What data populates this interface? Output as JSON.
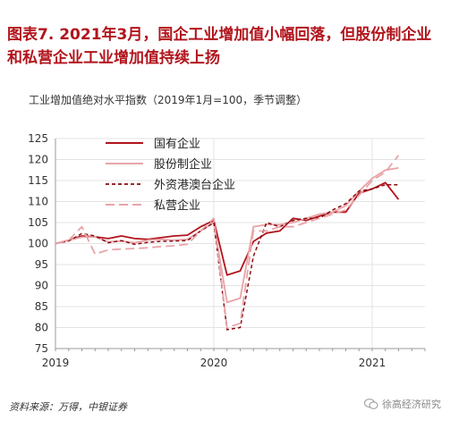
{
  "title": "图表7. 2021年3月，国企工业增加值小幅回落，但股份制企业和私营企业工业增加值持续上扬",
  "subtitle": "工业增加值绝对水平指数（2019年1月=100，季节调整）",
  "source": "资料来源：万得，中银证券",
  "watermark": "徐高经济研究",
  "chart_data": {
    "type": "line",
    "xlabel": "",
    "ylabel": "",
    "ylim": [
      75,
      125
    ],
    "yticks": [
      75,
      80,
      85,
      90,
      95,
      100,
      105,
      110,
      115,
      120,
      125
    ],
    "xlim": [
      "2019-01",
      "2021-05"
    ],
    "xtick_labels": [
      "2019",
      "2020",
      "2021"
    ],
    "grid": true,
    "legend": "top-left",
    "x": [
      "2019-01",
      "2019-02",
      "2019-03",
      "2019-04",
      "2019-05",
      "2019-06",
      "2019-07",
      "2019-08",
      "2019-09",
      "2019-10",
      "2019-11",
      "2019-12",
      "2020-01",
      "2020-02",
      "2020-03",
      "2020-04",
      "2020-05",
      "2020-06",
      "2020-07",
      "2020-08",
      "2020-09",
      "2020-10",
      "2020-11",
      "2020-12",
      "2021-01",
      "2021-02",
      "2021-03"
    ],
    "series": [
      {
        "name": "国有企业",
        "color": "#b2141c",
        "dash": "solid",
        "width": 1.8,
        "values": [
          100,
          100.8,
          101.8,
          101.6,
          101.2,
          101.8,
          101.2,
          101.0,
          101.4,
          101.8,
          102.0,
          104.0,
          105.5,
          92.5,
          93.5,
          100.5,
          102.5,
          103.0,
          106.0,
          105.5,
          106.5,
          107.5,
          107.5,
          112.0,
          113.0,
          114.5,
          110.5
        ]
      },
      {
        "name": "股份制企业",
        "color": "#e8a4a8",
        "dash": "solid",
        "width": 1.8,
        "values": [
          100,
          100.8,
          101.5,
          101.6,
          100.4,
          100.6,
          100.2,
          100.8,
          101.0,
          100.8,
          101.0,
          103.0,
          105.0,
          86.0,
          87.0,
          104.0,
          104.5,
          104.5,
          105.0,
          106.0,
          107.0,
          107.5,
          109.0,
          112.5,
          115.5,
          117.5,
          118.0
        ]
      },
      {
        "name": "外资港澳台企业",
        "color": "#8b0a10",
        "dash": "4,3",
        "width": 1.5,
        "values": [
          100,
          100.6,
          102.4,
          101.8,
          100.2,
          100.7,
          99.8,
          100.3,
          100.5,
          100.6,
          100.7,
          103.0,
          105.0,
          79.5,
          80.0,
          97.0,
          105.0,
          104.0,
          105.5,
          106.0,
          106.0,
          108.0,
          109.5,
          112.5,
          113.0,
          114.0,
          114.0
        ]
      },
      {
        "name": "私营企业",
        "color": "#e8a4a8",
        "dash": "10,5",
        "width": 1.8,
        "values": [
          100,
          100.8,
          104.0,
          97.5,
          98.5,
          98.7,
          98.8,
          99.0,
          99.3,
          99.5,
          99.8,
          103.0,
          106.0,
          80.0,
          81.0,
          103.0,
          103.0,
          104.0,
          104.0,
          105.0,
          106.0,
          107.0,
          108.0,
          111.5,
          115.0,
          117.0,
          121.0
        ]
      }
    ]
  }
}
